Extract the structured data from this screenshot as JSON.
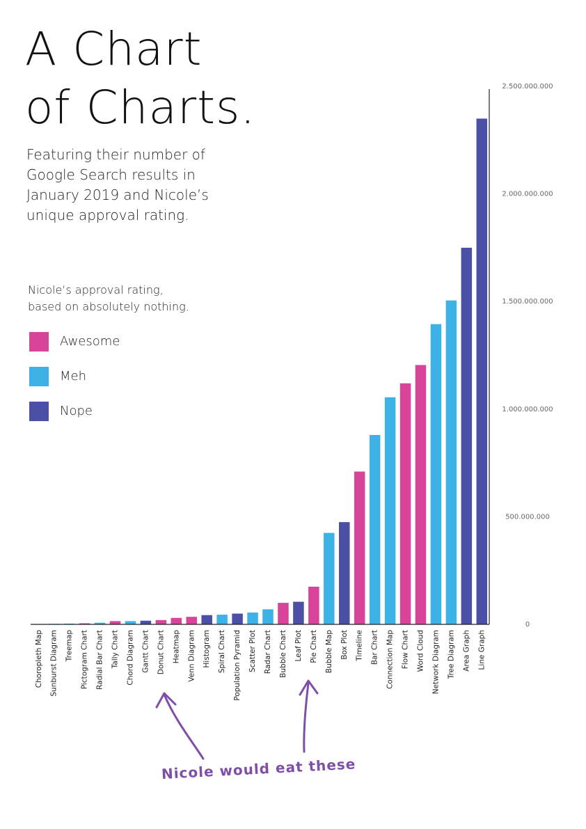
{
  "page": {
    "title_line1": "A Chart",
    "title_line2": "of Charts.",
    "subtitle_lines": [
      "Featuring their number of",
      "Google Search results in",
      "January 2019 and Nicole’s",
      "unique approval rating."
    ],
    "legend_title_lines": [
      "Nicole’s approval rating,",
      "based on absolutely nothing."
    ],
    "legend": [
      {
        "label": "Awesome",
        "color": "#d9449b"
      },
      {
        "label": "Meh",
        "color": "#3db2e6"
      },
      {
        "label": "Nope",
        "color": "#4b4fa6"
      }
    ],
    "annotation": "Nicole would eat these",
    "annotation_color": "#7e4ea8"
  },
  "chart_data": {
    "type": "bar",
    "y_tick_labels": [
      "0",
      "500.000.000",
      "1.000.000.000",
      "1.500.000.000",
      "2.000.000.000",
      "2.500.000.000"
    ],
    "y_ticks": [
      0,
      500000000,
      1000000000,
      1500000000,
      2000000000,
      2500000000
    ],
    "ylim": [
      0,
      2500000000
    ],
    "grid": false,
    "y_axis_side": "right",
    "categories": [
      "Choropleth Map",
      "Sunburst Diagram",
      "Treemap",
      "Pictogram Chart",
      "Radial Bar Chart",
      "Tally Chart",
      "Chord Diagram",
      "Gantt Chart",
      "Donut Chart",
      "Heatmap",
      "Venn Diagram",
      "Histogram",
      "Spiral Chart",
      "Population Pyramid",
      "Scatter Plot",
      "Radar Chart",
      "Bubble Chart",
      "Leaf Plot",
      "Pie Chart",
      "Bubble Map",
      "Box Plot",
      "Timeline",
      "Bar Chart",
      "Connection Map",
      "Flow Chart",
      "Word Cloud",
      "Network Diagram",
      "Tree Diagram",
      "Area Graph",
      "Line Graph"
    ],
    "values": [
      1500000,
      2500000,
      3500000,
      5000000,
      7500000,
      15000000,
      15000000,
      17000000,
      20000000,
      30000000,
      35000000,
      43000000,
      45000000,
      50000000,
      55000000,
      70000000,
      100000000,
      105000000,
      175000000,
      425000000,
      475000000,
      710000000,
      880000000,
      1055000000,
      1120000000,
      1205000000,
      1395000000,
      1505000000,
      1750000000,
      2350000000
    ],
    "rating": [
      "Nope",
      "Meh",
      "Meh",
      "Awesome",
      "Meh",
      "Awesome",
      "Meh",
      "Nope",
      "Awesome",
      "Awesome",
      "Awesome",
      "Nope",
      "Meh",
      "Nope",
      "Meh",
      "Meh",
      "Awesome",
      "Nope",
      "Awesome",
      "Meh",
      "Nope",
      "Awesome",
      "Meh",
      "Meh",
      "Awesome",
      "Awesome",
      "Meh",
      "Meh",
      "Nope",
      "Nope"
    ],
    "pointed_at": [
      "Donut Chart",
      "Pie Chart"
    ]
  }
}
